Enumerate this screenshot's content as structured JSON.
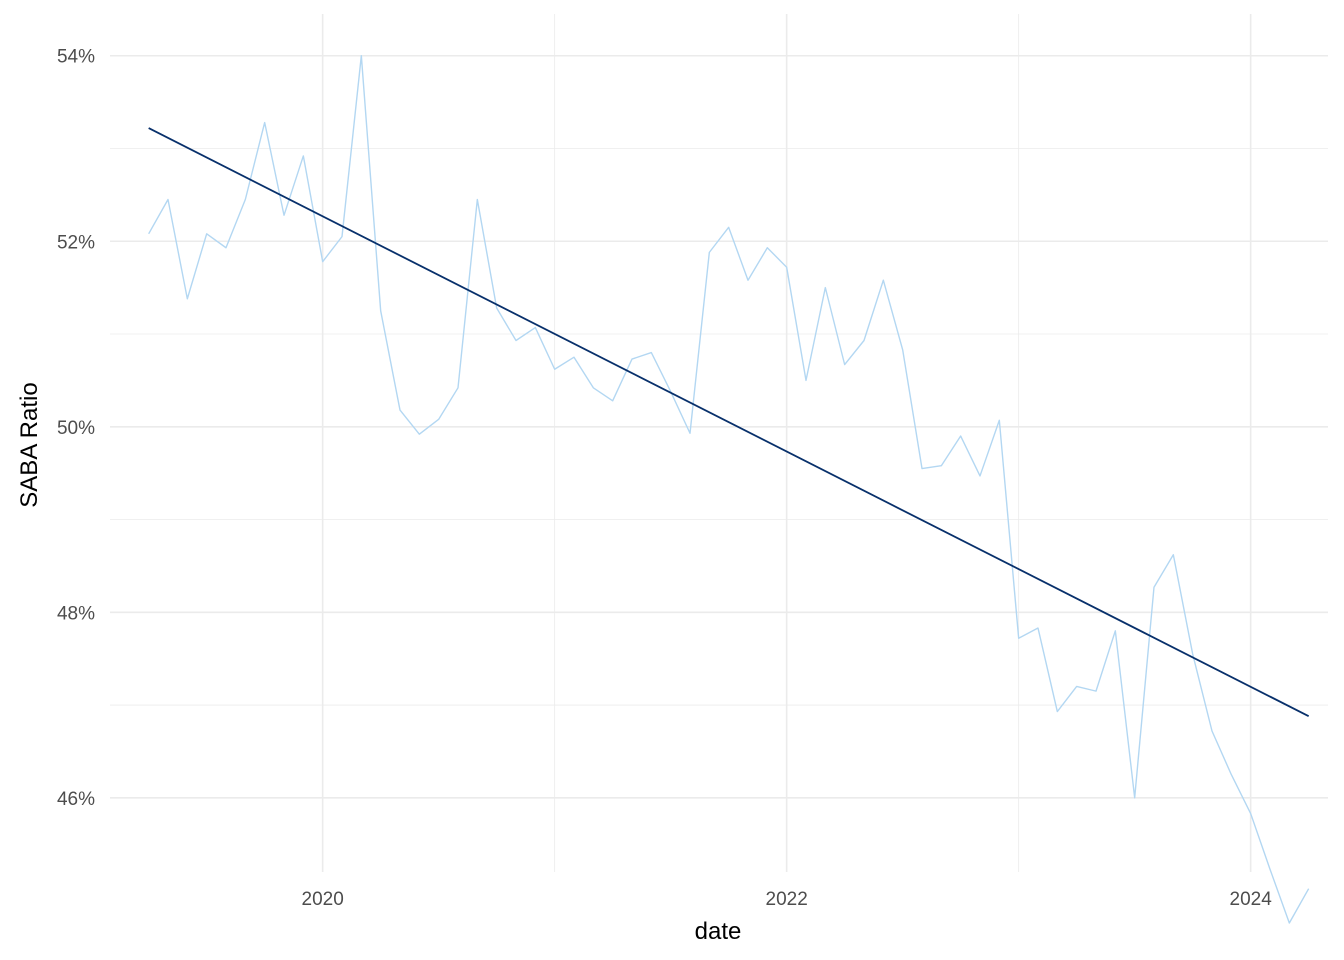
{
  "chart_data": {
    "type": "line",
    "title": "",
    "xlabel": "date",
    "ylabel": "SABA Ratio",
    "x_ticks": [
      "2020",
      "2022",
      "2024"
    ],
    "y_ticks": [
      "46%",
      "48%",
      "50%",
      "52%",
      "54%"
    ],
    "xlim": [
      "2019-02-01",
      "2024-05-01"
    ],
    "ylim": [
      45.2,
      54.45
    ],
    "grid": true,
    "legend": "none",
    "colors": {
      "observed": "#b3d7f2",
      "trend": "#08306b",
      "grid": "#ebebeb"
    },
    "series": [
      {
        "key": "observed",
        "values": [
          [
            "2019-04",
            52.08
          ],
          [
            "2019-05",
            52.45
          ],
          [
            "2019-06",
            51.38
          ],
          [
            "2019-07",
            52.08
          ],
          [
            "2019-08",
            51.93
          ],
          [
            "2019-09",
            52.45
          ],
          [
            "2019-10",
            53.28
          ],
          [
            "2019-11",
            52.28
          ],
          [
            "2019-12",
            52.92
          ],
          [
            "2020-01",
            51.78
          ],
          [
            "2020-02",
            52.05
          ],
          [
            "2020-03",
            54.0
          ],
          [
            "2020-04",
            51.25
          ],
          [
            "2020-05",
            50.18
          ],
          [
            "2020-06",
            49.92
          ],
          [
            "2020-07",
            50.08
          ],
          [
            "2020-08",
            50.42
          ],
          [
            "2020-09",
            52.45
          ],
          [
            "2020-10",
            51.28
          ],
          [
            "2020-11",
            50.93
          ],
          [
            "2020-12",
            51.07
          ],
          [
            "2021-01",
            50.62
          ],
          [
            "2021-02",
            50.75
          ],
          [
            "2021-03",
            50.42
          ],
          [
            "2021-04",
            50.28
          ],
          [
            "2021-05",
            50.73
          ],
          [
            "2021-06",
            50.8
          ],
          [
            "2021-07",
            50.38
          ],
          [
            "2021-08",
            49.93
          ],
          [
            "2021-09",
            51.88
          ],
          [
            "2021-10",
            52.15
          ],
          [
            "2021-11",
            51.58
          ],
          [
            "2021-12",
            51.93
          ],
          [
            "2022-01",
            51.72
          ],
          [
            "2022-02",
            50.5
          ],
          [
            "2022-03",
            51.5
          ],
          [
            "2022-04",
            50.67
          ],
          [
            "2022-05",
            50.93
          ],
          [
            "2022-06",
            51.58
          ],
          [
            "2022-07",
            50.83
          ],
          [
            "2022-08",
            49.55
          ],
          [
            "2022-09",
            49.58
          ],
          [
            "2022-10",
            49.9
          ],
          [
            "2022-11",
            49.47
          ],
          [
            "2022-12",
            50.07
          ],
          [
            "2023-01",
            47.72
          ],
          [
            "2023-02",
            47.83
          ],
          [
            "2023-03",
            46.93
          ],
          [
            "2023-04",
            47.2
          ],
          [
            "2023-05",
            47.15
          ],
          [
            "2023-06",
            47.8
          ],
          [
            "2023-07",
            46.0
          ],
          [
            "2023-08",
            48.27
          ],
          [
            "2023-09",
            48.62
          ],
          [
            "2023-10",
            47.55
          ],
          [
            "2023-11",
            46.72
          ],
          [
            "2023-12",
            46.25
          ],
          [
            "2024-01",
            45.83
          ],
          [
            "2024-02",
            45.23
          ],
          [
            "2024-03",
            44.65
          ],
          [
            "2024-04",
            45.02
          ]
        ]
      },
      {
        "key": "trend",
        "values": [
          [
            "2019-04",
            53.22
          ],
          [
            "2024-04",
            46.88
          ]
        ]
      }
    ]
  }
}
